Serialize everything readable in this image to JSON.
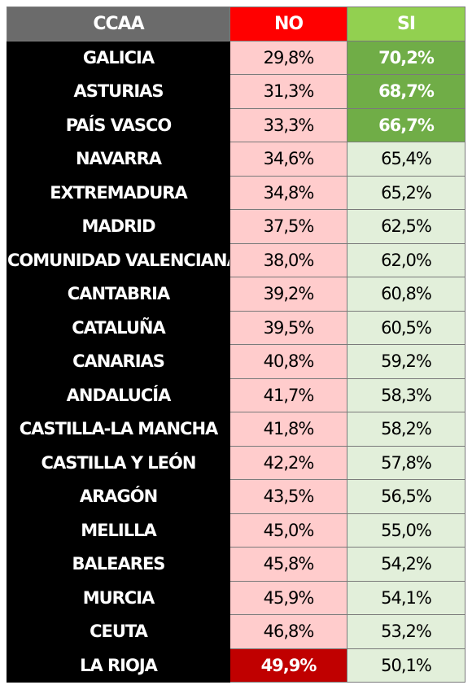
{
  "chart_data": {
    "type": "table",
    "columns": [
      "CCAA",
      "NO",
      "SI"
    ],
    "rows": [
      {
        "ccaa": "GALICIA",
        "no": "29,8%",
        "si": "70,2%",
        "hl_si": true,
        "hl_no": false
      },
      {
        "ccaa": "ASTURIAS",
        "no": "31,3%",
        "si": "68,7%",
        "hl_si": true,
        "hl_no": false
      },
      {
        "ccaa": "PAÍS VASCO",
        "no": "33,3%",
        "si": "66,7%",
        "hl_si": true,
        "hl_no": false
      },
      {
        "ccaa": "NAVARRA",
        "no": "34,6%",
        "si": "65,4%",
        "hl_si": false,
        "hl_no": false
      },
      {
        "ccaa": "EXTREMADURA",
        "no": "34,8%",
        "si": "65,2%",
        "hl_si": false,
        "hl_no": false
      },
      {
        "ccaa": "MADRID",
        "no": "37,5%",
        "si": "62,5%",
        "hl_si": false,
        "hl_no": false
      },
      {
        "ccaa": "COMUNIDAD VALENCIANA",
        "no": "38,0%",
        "si": "62,0%",
        "hl_si": false,
        "hl_no": false
      },
      {
        "ccaa": "CANTABRIA",
        "no": "39,2%",
        "si": "60,8%",
        "hl_si": false,
        "hl_no": false
      },
      {
        "ccaa": "CATALUÑA",
        "no": "39,5%",
        "si": "60,5%",
        "hl_si": false,
        "hl_no": false
      },
      {
        "ccaa": "CANARIAS",
        "no": "40,8%",
        "si": "59,2%",
        "hl_si": false,
        "hl_no": false
      },
      {
        "ccaa": "ANDALUCÍA",
        "no": "41,7%",
        "si": "58,3%",
        "hl_si": false,
        "hl_no": false
      },
      {
        "ccaa": "CASTILLA-LA MANCHA",
        "no": "41,8%",
        "si": "58,2%",
        "hl_si": false,
        "hl_no": false
      },
      {
        "ccaa": "CASTILLA Y LEÓN",
        "no": "42,2%",
        "si": "57,8%",
        "hl_si": false,
        "hl_no": false
      },
      {
        "ccaa": "ARAGÓN",
        "no": "43,5%",
        "si": "56,5%",
        "hl_si": false,
        "hl_no": false
      },
      {
        "ccaa": "MELILLA",
        "no": "45,0%",
        "si": "55,0%",
        "hl_si": false,
        "hl_no": false
      },
      {
        "ccaa": "BALEARES",
        "no": "45,8%",
        "si": "54,2%",
        "hl_si": false,
        "hl_no": false
      },
      {
        "ccaa": "MURCIA",
        "no": "45,9%",
        "si": "54,1%",
        "hl_si": false,
        "hl_no": false
      },
      {
        "ccaa": "CEUTA",
        "no": "46,8%",
        "si": "53,2%",
        "hl_si": false,
        "hl_no": false
      },
      {
        "ccaa": "LA RIOJA",
        "no": "49,9%",
        "si": "50,1%",
        "hl_si": false,
        "hl_no": true
      }
    ]
  },
  "colors": {
    "header_ccaa": "#6b6b6b",
    "header_no": "#ff0000",
    "header_si": "#92d050",
    "name_bg": "#000000",
    "no_bg": "#ffcccc",
    "si_bg": "#e2efda",
    "no_highlight": "#c00000",
    "si_highlight": "#70ad47"
  }
}
